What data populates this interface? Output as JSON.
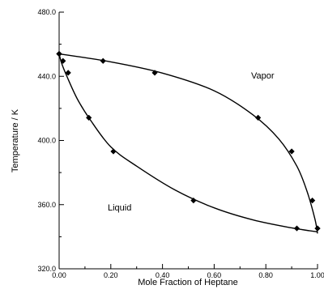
{
  "chart_data": {
    "type": "scatter",
    "title": "",
    "xlabel": "Mole Fraction of Heptane",
    "ylabel": "Temperature / K",
    "xlim": [
      0.0,
      1.0
    ],
    "ylim": [
      320.0,
      480.0
    ],
    "x_ticks": [
      "0.00",
      "0.20",
      "0.40",
      "0.60",
      "0.80",
      "1.00"
    ],
    "y_ticks": [
      "320.0",
      "360.0",
      "400.0",
      "440.0",
      "480.0"
    ],
    "grid": false,
    "annotations": {
      "vapor": "Vapor",
      "liquid": "Liquid"
    },
    "series": [
      {
        "points": [
          [
            0.0,
            454.0
          ],
          [
            0.17,
            449.6
          ],
          [
            0.37,
            442.2
          ],
          [
            0.77,
            414.2
          ],
          [
            0.9,
            393.2
          ],
          [
            0.98,
            362.6
          ],
          [
            1.0,
            345.2
          ]
        ]
      },
      {
        "points": [
          [
            0.0,
            454.0
          ],
          [
            0.015,
            449.6
          ],
          [
            0.035,
            442.2
          ],
          [
            0.115,
            414.2
          ],
          [
            0.21,
            393.2
          ],
          [
            0.52,
            362.6
          ],
          [
            0.92,
            345.2
          ],
          [
            1.0,
            345.2
          ]
        ]
      }
    ],
    "curves": [
      {
        "points": [
          [
            0.0,
            454.0
          ],
          [
            0.2,
            449.0
          ],
          [
            0.4,
            442.0
          ],
          [
            0.6,
            431.0
          ],
          [
            0.75,
            416.0
          ],
          [
            0.85,
            401.0
          ],
          [
            0.92,
            384.0
          ],
          [
            0.96,
            368.0
          ],
          [
            0.99,
            351.0
          ],
          [
            1.0,
            342.0
          ]
        ]
      },
      {
        "points": [
          [
            0.0,
            454.0
          ],
          [
            0.01,
            448.0
          ],
          [
            0.03,
            440.0
          ],
          [
            0.07,
            426.0
          ],
          [
            0.12,
            413.0
          ],
          [
            0.2,
            396.0
          ],
          [
            0.3,
            384.0
          ],
          [
            0.45,
            369.0
          ],
          [
            0.6,
            358.0
          ],
          [
            0.75,
            350.5
          ],
          [
            0.9,
            345.5
          ],
          [
            1.0,
            343.0
          ]
        ]
      }
    ]
  }
}
